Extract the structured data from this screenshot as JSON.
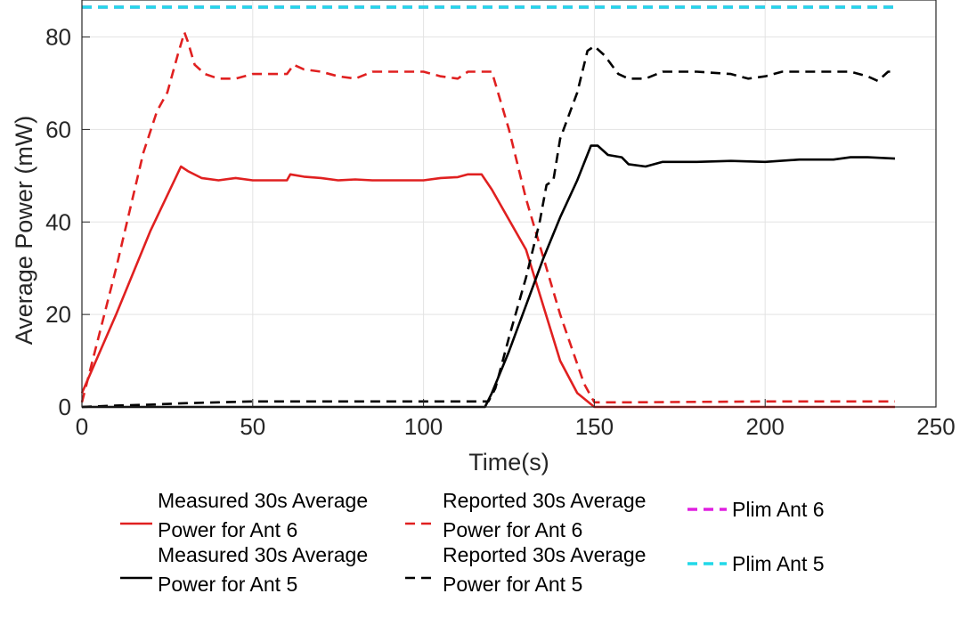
{
  "chart_data": {
    "type": "line",
    "xlabel": "Time(s)",
    "ylabel": "Average Power (mW)",
    "xlim": [
      0,
      250
    ],
    "ylim": [
      0,
      88
    ],
    "xticks": [
      0,
      50,
      100,
      150,
      200,
      250
    ],
    "yticks": [
      0,
      20,
      40,
      60,
      80
    ],
    "grid": true,
    "legend_position": "bottom",
    "series": [
      {
        "name": "Measured 30s Average Power for Ant 6",
        "color": "#e02020",
        "dash": "solid",
        "points": [
          [
            0,
            3
          ],
          [
            10,
            20
          ],
          [
            20,
            38
          ],
          [
            29,
            52
          ],
          [
            31,
            51
          ],
          [
            35,
            49.5
          ],
          [
            40,
            49
          ],
          [
            45,
            49.5
          ],
          [
            50,
            49
          ],
          [
            55,
            49
          ],
          [
            60,
            49
          ],
          [
            61,
            50.3
          ],
          [
            65,
            49.8
          ],
          [
            70,
            49.5
          ],
          [
            75,
            49
          ],
          [
            80,
            49.2
          ],
          [
            85,
            49
          ],
          [
            90,
            49
          ],
          [
            95,
            49
          ],
          [
            100,
            49
          ],
          [
            105,
            49.5
          ],
          [
            110,
            49.7
          ],
          [
            113,
            50.3
          ],
          [
            117,
            50.3
          ],
          [
            120,
            47
          ],
          [
            130,
            34
          ],
          [
            140,
            10
          ],
          [
            145,
            3
          ],
          [
            150,
            0
          ],
          [
            160,
            0
          ],
          [
            200,
            0
          ],
          [
            238,
            0
          ]
        ]
      },
      {
        "name": "Reported 30s Average Power for Ant 6",
        "color": "#e02020",
        "dash": "dashed",
        "points": [
          [
            0,
            1
          ],
          [
            10,
            30
          ],
          [
            18,
            55
          ],
          [
            22,
            64
          ],
          [
            25,
            68
          ],
          [
            28,
            76
          ],
          [
            30,
            81
          ],
          [
            31,
            79
          ],
          [
            33,
            74
          ],
          [
            36,
            72
          ],
          [
            40,
            71
          ],
          [
            45,
            71
          ],
          [
            50,
            72
          ],
          [
            55,
            72
          ],
          [
            60,
            72
          ],
          [
            62,
            74
          ],
          [
            65,
            73
          ],
          [
            70,
            72.5
          ],
          [
            75,
            71.5
          ],
          [
            80,
            71
          ],
          [
            85,
            72.5
          ],
          [
            90,
            72.5
          ],
          [
            95,
            72.5
          ],
          [
            100,
            72.5
          ],
          [
            105,
            71.5
          ],
          [
            110,
            71
          ],
          [
            113,
            72.5
          ],
          [
            120,
            72.5
          ],
          [
            125,
            60
          ],
          [
            130,
            45
          ],
          [
            140,
            20
          ],
          [
            147,
            5
          ],
          [
            150,
            1
          ],
          [
            160,
            1
          ],
          [
            200,
            1.2
          ],
          [
            238,
            1.2
          ]
        ]
      },
      {
        "name": "Measured 30s Average Power for Ant 5",
        "color": "#000000",
        "dash": "solid",
        "points": [
          [
            0,
            0
          ],
          [
            50,
            0
          ],
          [
            100,
            0
          ],
          [
            118,
            0
          ],
          [
            120,
            3
          ],
          [
            125,
            12
          ],
          [
            130,
            22
          ],
          [
            135,
            32
          ],
          [
            140,
            41
          ],
          [
            145,
            49
          ],
          [
            149,
            56.5
          ],
          [
            151,
            56.5
          ],
          [
            154,
            54.5
          ],
          [
            158,
            54
          ],
          [
            160,
            52.5
          ],
          [
            165,
            52
          ],
          [
            170,
            53
          ],
          [
            180,
            53
          ],
          [
            190,
            53.2
          ],
          [
            200,
            53
          ],
          [
            210,
            53.5
          ],
          [
            220,
            53.5
          ],
          [
            225,
            54
          ],
          [
            230,
            54
          ],
          [
            238,
            53.7
          ]
        ]
      },
      {
        "name": "Reported 30s Average Power for Ant 5",
        "color": "#000000",
        "dash": "dashed",
        "points": [
          [
            0,
            0
          ],
          [
            10,
            0.3
          ],
          [
            20,
            0.5
          ],
          [
            30,
            0.8
          ],
          [
            40,
            1
          ],
          [
            50,
            1.2
          ],
          [
            100,
            1.2
          ],
          [
            119,
            1.2
          ],
          [
            121,
            4
          ],
          [
            125,
            15
          ],
          [
            130,
            28
          ],
          [
            134,
            40
          ],
          [
            136,
            48
          ],
          [
            138,
            49
          ],
          [
            140,
            58
          ],
          [
            145,
            68
          ],
          [
            148,
            77
          ],
          [
            150,
            78
          ],
          [
            153,
            76
          ],
          [
            157,
            72
          ],
          [
            160,
            71
          ],
          [
            165,
            71
          ],
          [
            170,
            72.5
          ],
          [
            180,
            72.5
          ],
          [
            190,
            72
          ],
          [
            195,
            71
          ],
          [
            200,
            71.5
          ],
          [
            205,
            72.5
          ],
          [
            210,
            72.5
          ],
          [
            220,
            72.5
          ],
          [
            225,
            72.5
          ],
          [
            230,
            71.5
          ],
          [
            233,
            70.5
          ],
          [
            236,
            72.5
          ],
          [
            238,
            72.5
          ]
        ]
      },
      {
        "name": "Plim Ant 6",
        "color": "#e020e0",
        "dash": "dashed",
        "points": [
          [
            0,
            90
          ],
          [
            238,
            90
          ]
        ]
      },
      {
        "name": "Plim Ant 5",
        "color": "#22d8e8",
        "dash": "dashed",
        "points": [
          [
            0,
            90
          ],
          [
            238,
            90
          ]
        ]
      }
    ]
  },
  "legend": {
    "items": [
      {
        "line1": "Measured 30s Average",
        "line2": "Power for Ant 6",
        "color": "#e02020",
        "dash": "solid"
      },
      {
        "line1": "Reported 30s Average",
        "line2": "Power for Ant 6",
        "color": "#e02020",
        "dash": "dashed"
      },
      {
        "line1": "Plim Ant 6",
        "line2": "",
        "color": "#e020e0",
        "dash": "dashed"
      },
      {
        "line1": "Measured 30s Average",
        "line2": "Power for Ant 5",
        "color": "#000000",
        "dash": "solid"
      },
      {
        "line1": "Reported 30s Average",
        "line2": "Power for Ant 5",
        "color": "#000000",
        "dash": "dashed"
      },
      {
        "line1": "Plim Ant 5",
        "line2": "",
        "color": "#22d8e8",
        "dash": "dashed"
      }
    ]
  }
}
